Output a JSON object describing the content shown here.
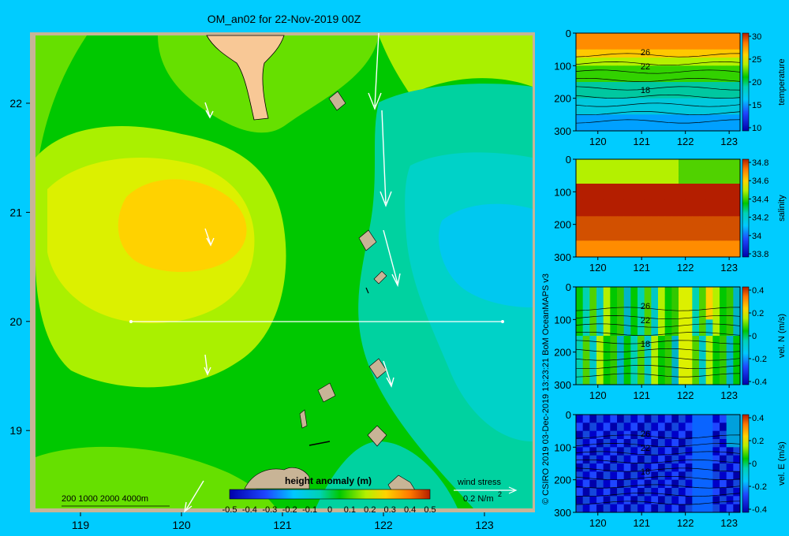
{
  "title": "OM_an02 for 22-Nov-2019 00Z",
  "credit": "© CSIRO 2019   03-Dec-2019 13:23:21 BoM OceanMAPS v3",
  "map": {
    "x_ticks": [
      "119",
      "120",
      "121",
      "122",
      "123"
    ],
    "y_ticks": [
      "22",
      "21",
      "20",
      "19"
    ],
    "depth_legend": "200  1000  2000  4000m",
    "colorbar_label": "height anomaly (m)",
    "colorbar_ticks": [
      "-0.5",
      "-0.4",
      "-0.3",
      "-0.2",
      "-0.1",
      "0",
      "0.1",
      "0.2",
      "0.3",
      "0.4",
      "0.5"
    ],
    "wind_label": "wind stress",
    "wind_scale": "0.2 N/m",
    "wind_scale_exp": "2"
  },
  "panels": [
    {
      "label": "temperature",
      "cbar_ticks": [
        "30",
        "25",
        "20",
        "15",
        "10"
      ],
      "contours": [
        "26",
        "22",
        "18"
      ]
    },
    {
      "label": "salinity",
      "cbar_ticks": [
        "34.8",
        "34.6",
        "34.4",
        "34.2",
        "34",
        "33.8"
      ],
      "contours": []
    },
    {
      "label": "vel. N  (m/s)",
      "cbar_ticks": [
        "0.4",
        "0.2",
        "0",
        "-0.2",
        "-0.4"
      ],
      "contours": [
        "26",
        "22",
        "18"
      ]
    },
    {
      "label": "vel. E  (m/s)",
      "cbar_ticks": [
        "0.4",
        "0.2",
        "0",
        "-0.2",
        "-0.4"
      ],
      "contours": [
        "26",
        "22",
        "18"
      ]
    }
  ],
  "panel_x_ticks": [
    "120",
    "121",
    "122",
    "123"
  ],
  "panel_y_ticks": [
    "0",
    "100",
    "200",
    "300"
  ],
  "colors": {
    "background": "#00ccff",
    "land": "#f8c896",
    "shelf": "#c8b496"
  },
  "chart_data": [
    {
      "type": "heatmap",
      "title": "OM_an02 for 22-Nov-2019 00Z",
      "xlim": [
        118.5,
        123.5
      ],
      "ylim": [
        18.25,
        22.65
      ],
      "x_ticks": [
        119,
        120,
        121,
        122,
        123
      ],
      "y_ticks": [
        19,
        20,
        21,
        22
      ],
      "colorbar": {
        "label": "height anomaly (m)",
        "range": [
          -0.5,
          0.5
        ]
      },
      "section_line": {
        "lat": 20,
        "lon_start": 119.5,
        "lon_end": 123.2
      },
      "field_samples": [
        {
          "lon": 119.2,
          "lat": 22.3,
          "value": 0.15
        },
        {
          "lon": 119.8,
          "lat": 22.2,
          "value": 0.05
        },
        {
          "lon": 120.8,
          "lat": 22.3,
          "value": 0.1
        },
        {
          "lon": 119.8,
          "lat": 21.0,
          "value": 0.3
        },
        {
          "lon": 119.5,
          "lat": 20.5,
          "value": 0.2
        },
        {
          "lon": 120.5,
          "lat": 20.2,
          "value": 0.15
        },
        {
          "lon": 121.2,
          "lat": 20.5,
          "value": 0.1
        },
        {
          "lon": 121.6,
          "lat": 20.0,
          "value": 0.05
        },
        {
          "lon": 122.4,
          "lat": 21.5,
          "value": -0.05
        },
        {
          "lon": 123.0,
          "lat": 21.0,
          "value": -0.1
        },
        {
          "lon": 122.5,
          "lat": 20.0,
          "value": -0.05
        },
        {
          "lon": 119.3,
          "lat": 19.2,
          "value": 0.05
        },
        {
          "lon": 120.7,
          "lat": 19.0,
          "value": 0.1
        },
        {
          "lon": 122.8,
          "lat": 19.0,
          "value": -0.05
        }
      ],
      "wind_stress_vectors": [
        {
          "lon": 122.0,
          "lat": 22.3,
          "u": 0.0,
          "v": -0.15
        },
        {
          "lon": 122.05,
          "lat": 21.6,
          "u": 0.0,
          "v": -0.18
        },
        {
          "lon": 122.1,
          "lat": 20.7,
          "u": 0.01,
          "v": -0.12
        },
        {
          "lon": 120.25,
          "lat": 22.0,
          "u": 0.005,
          "v": -0.03
        },
        {
          "lon": 120.25,
          "lat": 20.9,
          "u": 0.005,
          "v": -0.03
        },
        {
          "lon": 120.25,
          "lat": 19.7,
          "u": 0.0,
          "v": -0.04
        },
        {
          "lon": 122.1,
          "lat": 19.7,
          "u": 0.01,
          "v": -0.05
        },
        {
          "lon": 120.2,
          "lat": 18.5,
          "u": -0.02,
          "v": -0.04
        }
      ]
    },
    {
      "type": "heatmap",
      "xlim": [
        119.5,
        123.25
      ],
      "ylim": [
        300,
        0
      ],
      "ylabel": "temperature",
      "range": [
        10,
        30
      ],
      "profile": [
        {
          "depth": 0,
          "value": 28
        },
        {
          "depth": 50,
          "value": 27
        },
        {
          "depth": 100,
          "value": 22
        },
        {
          "depth": 200,
          "value": 17
        },
        {
          "depth": 300,
          "value": 12
        }
      ],
      "contours": [
        26,
        22,
        18
      ]
    },
    {
      "type": "heatmap",
      "xlim": [
        119.5,
        123.25
      ],
      "ylim": [
        300,
        0
      ],
      "ylabel": "salinity",
      "range": [
        33.7,
        34.9
      ],
      "profile": [
        {
          "depth": 0,
          "value": 34.3
        },
        {
          "depth": 40,
          "value": 34.4
        },
        {
          "depth": 80,
          "value": 34.85
        },
        {
          "depth": 200,
          "value": 34.7
        },
        {
          "depth": 300,
          "value": 34.55
        }
      ]
    },
    {
      "type": "heatmap",
      "xlim": [
        119.5,
        123.25
      ],
      "ylim": [
        300,
        0
      ],
      "ylabel": "vel. N  (m/s)",
      "range": [
        -0.45,
        0.45
      ],
      "profile": [
        {
          "depth": 0,
          "value": 0.1
        },
        {
          "depth": 300,
          "value": 0.05
        }
      ],
      "contours": [
        26,
        22,
        18
      ]
    },
    {
      "type": "heatmap",
      "xlim": [
        119.5,
        123.25
      ],
      "ylim": [
        300,
        0
      ],
      "ylabel": "vel. E  (m/s)",
      "range": [
        -0.45,
        0.45
      ],
      "profile": [
        {
          "depth": 0,
          "value": -0.35
        },
        {
          "depth": 300,
          "value": -0.3
        }
      ],
      "contours": [
        26,
        22,
        18
      ]
    }
  ]
}
